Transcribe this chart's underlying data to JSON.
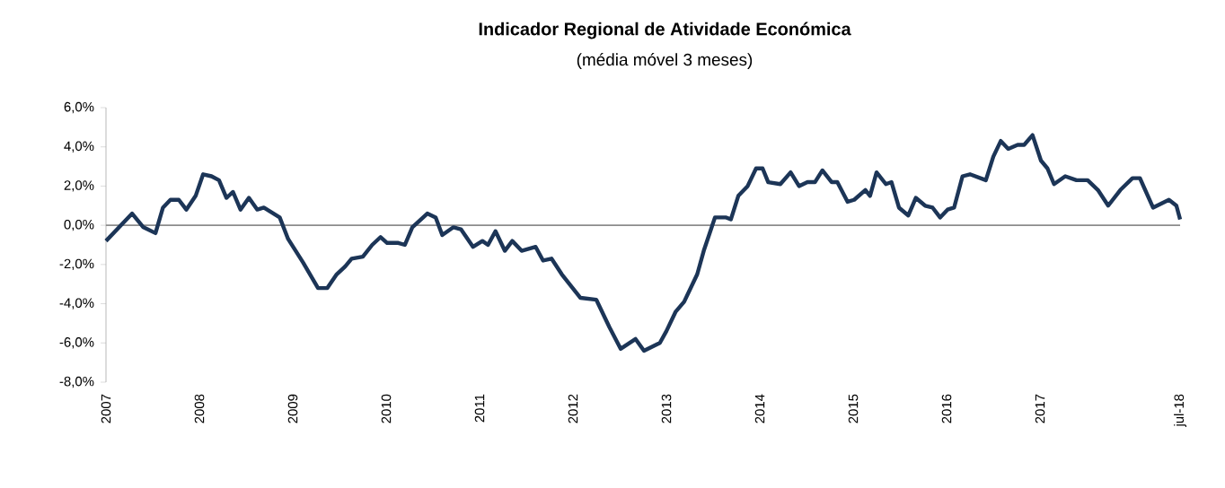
{
  "chart_data": {
    "type": "line",
    "title": "Indicador Regional de Atividade Económica",
    "subtitle": "(média móvel  3 meses)",
    "x": [
      2007.0,
      2007.28,
      2007.4,
      2007.53,
      2007.61,
      2007.69,
      2007.78,
      2007.86,
      2007.96,
      2008.04,
      2008.13,
      2008.21,
      2008.29,
      2008.36,
      2008.44,
      2008.53,
      2008.62,
      2008.69,
      2008.86,
      2008.95,
      2009.11,
      2009.27,
      2009.37,
      2009.47,
      2009.56,
      2009.63,
      2009.75,
      2009.85,
      2009.94,
      2010.01,
      2010.13,
      2010.2,
      2010.28,
      2010.44,
      2010.53,
      2010.6,
      2010.72,
      2010.8,
      2010.93,
      2011.03,
      2011.09,
      2011.17,
      2011.27,
      2011.35,
      2011.45,
      2011.6,
      2011.68,
      2011.77,
      2011.88,
      2012.08,
      2012.25,
      2012.39,
      2012.51,
      2012.67,
      2012.76,
      2012.93,
      2013.0,
      2013.1,
      2013.19,
      2013.33,
      2013.4,
      2013.52,
      2013.64,
      2013.69,
      2013.77,
      2013.87,
      2013.96,
      2014.03,
      2014.09,
      2014.22,
      2014.33,
      2014.42,
      2014.51,
      2014.59,
      2014.67,
      2014.77,
      2014.83,
      2014.94,
      2015.01,
      2015.13,
      2015.18,
      2015.25,
      2015.35,
      2015.41,
      2015.49,
      2015.59,
      2015.67,
      2015.77,
      2015.85,
      2015.93,
      2016.01,
      2016.08,
      2016.17,
      2016.25,
      2016.42,
      2016.5,
      2016.58,
      2016.66,
      2016.76,
      2016.83,
      2016.92,
      2017.01,
      2017.08,
      2017.15,
      2017.27,
      2017.39,
      2017.51,
      2017.62,
      2017.73,
      2017.86,
      2017.99,
      2018.07,
      2018.21,
      2018.38,
      2018.46,
      2018.5
    ],
    "series": [
      {
        "color": "#1c3557",
        "values": [
          -0.8,
          0.6,
          -0.1,
          -0.4,
          0.9,
          1.3,
          1.3,
          0.8,
          1.5,
          2.6,
          2.5,
          2.3,
          1.4,
          1.7,
          0.8,
          1.4,
          0.8,
          0.9,
          0.4,
          -0.7,
          -1.9,
          -3.2,
          -3.2,
          -2.5,
          -2.1,
          -1.7,
          -1.6,
          -1.0,
          -0.6,
          -0.9,
          -0.9,
          -1.0,
          -0.1,
          0.6,
          0.4,
          -0.5,
          -0.1,
          -0.2,
          -1.1,
          -0.8,
          -1.0,
          -0.3,
          -1.3,
          -0.8,
          -1.3,
          -1.1,
          -1.8,
          -1.7,
          -2.5,
          -3.7,
          -3.8,
          -5.2,
          -6.3,
          -5.8,
          -6.4,
          -6.0,
          -5.4,
          -4.4,
          -3.9,
          -2.5,
          -1.3,
          0.4,
          0.4,
          0.3,
          1.5,
          2.0,
          2.9,
          2.9,
          2.2,
          2.1,
          2.7,
          2.0,
          2.2,
          2.2,
          2.8,
          2.2,
          2.2,
          1.2,
          1.3,
          1.8,
          1.5,
          2.7,
          2.1,
          2.2,
          0.9,
          0.5,
          1.4,
          1.0,
          0.9,
          0.4,
          0.8,
          0.9,
          2.5,
          2.6,
          2.3,
          3.5,
          4.3,
          3.9,
          4.1,
          4.1,
          4.6,
          3.3,
          2.9,
          2.1,
          2.5,
          2.3,
          2.3,
          1.8,
          1.0,
          1.8,
          2.4,
          2.4,
          0.9,
          1.3,
          1.0,
          0.3
        ]
      }
    ],
    "xlim": [
      2007,
      2018.5
    ],
    "xticks": [
      2007,
      2008,
      2009,
      2010,
      2011,
      2012,
      2013,
      2014,
      2015,
      2016,
      2017,
      {
        "value": 2018.5,
        "label": "jul-18"
      }
    ],
    "ylim": [
      -8,
      6
    ],
    "yticks": [
      {
        "value": -8,
        "label": "-8,0%"
      },
      {
        "value": -6,
        "label": "-6,0%"
      },
      {
        "value": -4,
        "label": "-4,0%"
      },
      {
        "value": -2,
        "label": "-2,0%"
      },
      {
        "value": 0,
        "label": "0,0%"
      },
      {
        "value": 2,
        "label": "2,0%"
      },
      {
        "value": 4,
        "label": "4,0%"
      },
      {
        "value": 6,
        "label": "6,0%"
      }
    ],
    "ref_lines": [
      {
        "axis": "y",
        "value": 0,
        "color": "#8c8c8c"
      }
    ],
    "grid": false,
    "legend": false,
    "marker": "none",
    "line_style": "solid"
  }
}
